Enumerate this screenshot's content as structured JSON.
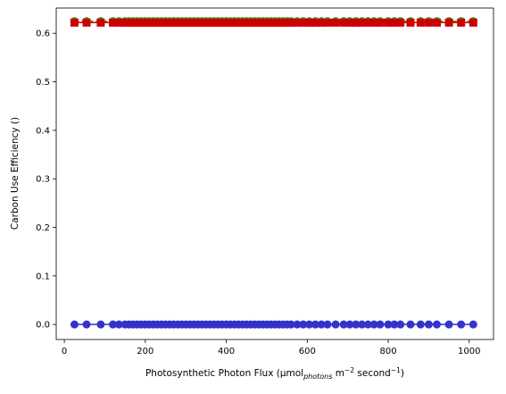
{
  "chart_data": {
    "type": "scatter",
    "xlabel": "Photosynthetic Photon Flux (µmol_photons m^-2 second^-1)",
    "xlabel_parts": {
      "prefix": "Photosynthetic Photon Flux (μmol",
      "sub": "photons",
      "mid1": " m",
      "sup1": "−2",
      "mid2": " second",
      "sup2": "−1",
      "suffix": ")"
    },
    "ylabel": "Carbon Use Efficiency ()",
    "xlim": [
      -20,
      1060
    ],
    "ylim": [
      -0.031,
      0.652
    ],
    "x_ticks": [
      0,
      200,
      400,
      600,
      800,
      1000
    ],
    "y_ticks": [
      0.0,
      0.1,
      0.2,
      0.3,
      0.4,
      0.5,
      0.6
    ],
    "grid": false,
    "legend": "none",
    "x": [
      25,
      55,
      90,
      120,
      135,
      150,
      160,
      170,
      180,
      190,
      200,
      210,
      220,
      230,
      240,
      250,
      260,
      270,
      280,
      290,
      300,
      310,
      320,
      330,
      340,
      350,
      360,
      370,
      380,
      390,
      400,
      410,
      420,
      430,
      440,
      450,
      460,
      470,
      480,
      490,
      500,
      510,
      520,
      530,
      540,
      550,
      560,
      575,
      590,
      605,
      620,
      635,
      650,
      670,
      690,
      705,
      720,
      735,
      750,
      765,
      780,
      800,
      815,
      830,
      855,
      880,
      900,
      920,
      950,
      980,
      1010
    ],
    "series": [
      {
        "name": "",
        "color": "#2ca02c",
        "marker": "circle",
        "linestyle": "dashed",
        "constant_y": 0.625
      },
      {
        "name": "",
        "color": "#cc0000",
        "marker": "square",
        "linestyle": "solid",
        "constant_y": 0.622
      },
      {
        "name": "",
        "color": "#3333cc",
        "marker": "circle",
        "linestyle": "solid",
        "constant_y": 0.0
      }
    ]
  }
}
